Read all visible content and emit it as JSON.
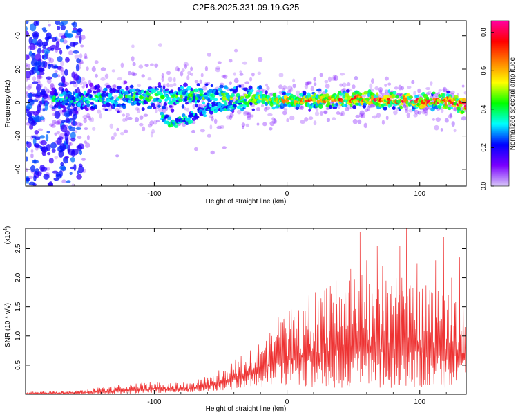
{
  "figure_title": "C2E6.2025.331.09.19.G25",
  "chart_data": [
    {
      "type": "heatmap",
      "title": "C2E6.2025.331.09.19.G25",
      "xlabel": "Height of straight line (km)",
      "ylabel": "Frequency (Hz)",
      "xlim": [
        -197,
        135
      ],
      "ylim": [
        -50,
        49
      ],
      "x_ticks": [
        -100,
        0,
        100
      ],
      "x_tick_labels": [
        "-100",
        "0",
        "100"
      ],
      "y_ticks": [
        -40,
        -20,
        0,
        20,
        40
      ],
      "y_tick_labels": [
        "-40",
        "-20",
        "0",
        "20",
        "40"
      ],
      "colorbar": {
        "label": "Normalized spectral amplitude",
        "range": [
          0,
          0.86
        ],
        "ticks": [
          0.0,
          0.2,
          0.4,
          0.6,
          0.8
        ],
        "tick_labels": [
          "0.0",
          "0.2",
          "0.4",
          "0.6",
          "0.8"
        ],
        "colormap": [
          "#d8c8f8",
          "#7a00ff",
          "#0000ff",
          "#00ffff",
          "#00ff00",
          "#ffff00",
          "#ff8000",
          "#ff0000",
          "#ff00a0"
        ]
      },
      "ridge": [
        {
          "x": -170,
          "freq": 2,
          "amp": 0.35
        },
        {
          "x": -140,
          "freq": 3,
          "amp": 0.38
        },
        {
          "x": -110,
          "freq": 3,
          "amp": 0.4
        },
        {
          "x": -80,
          "freq": 4,
          "amp": 0.42
        },
        {
          "x": -50,
          "freq": 3,
          "amp": 0.45
        },
        {
          "x": -20,
          "freq": 2,
          "amp": 0.5
        },
        {
          "x": 0,
          "freq": 1,
          "amp": 0.6
        },
        {
          "x": 30,
          "freq": 2,
          "amp": 0.65
        },
        {
          "x": 60,
          "freq": 2,
          "amp": 0.7
        },
        {
          "x": 90,
          "freq": 1,
          "amp": 0.72
        },
        {
          "x": 120,
          "freq": 1,
          "amp": 0.75
        },
        {
          "x": 132,
          "freq": -2,
          "amp": 0.8
        }
      ],
      "secondary_branch": [
        {
          "x": -95,
          "freq": -8,
          "amp": 0.3
        },
        {
          "x": -88,
          "freq": -13,
          "amp": 0.35
        },
        {
          "x": -80,
          "freq": -11,
          "amp": 0.3
        },
        {
          "x": -60,
          "freq": -4,
          "amp": 0.28
        },
        {
          "x": -40,
          "freq": -2,
          "amp": 0.3
        }
      ],
      "scatter_band": {
        "x_from": -197,
        "x_to": -155,
        "freq_from": -50,
        "freq_to": 49,
        "amp": 0.15
      }
    },
    {
      "type": "line",
      "xlabel": "Height of straight line (km)",
      "ylabel": "SNR (10 * v/v)",
      "y_multiplier": "(x10",
      "y_multiplier_exp": "4",
      "y_multiplier_close": ")",
      "xlim": [
        -197,
        135
      ],
      "ylim": [
        0,
        2.85
      ],
      "x_ticks": [
        -100,
        0,
        100
      ],
      "x_tick_labels": [
        "-100",
        "0",
        "100"
      ],
      "y_ticks": [
        0.5,
        1.0,
        1.5,
        2.0,
        2.5
      ],
      "y_tick_labels": [
        "0.5",
        "1.0",
        "1.5",
        "2.0",
        "2.5"
      ],
      "line_color": "#ee3333",
      "envelope": [
        {
          "x": -197,
          "low": 0.0,
          "high": 0.04
        },
        {
          "x": -160,
          "low": 0.0,
          "high": 0.06
        },
        {
          "x": -130,
          "low": 0.0,
          "high": 0.15
        },
        {
          "x": -100,
          "low": 0.02,
          "high": 0.22
        },
        {
          "x": -75,
          "low": 0.03,
          "high": 0.2
        },
        {
          "x": -55,
          "low": 0.05,
          "high": 0.35
        },
        {
          "x": -40,
          "low": 0.08,
          "high": 0.6
        },
        {
          "x": -25,
          "low": 0.1,
          "high": 0.85
        },
        {
          "x": -10,
          "low": 0.12,
          "high": 1.3
        },
        {
          "x": 5,
          "low": 0.1,
          "high": 1.55
        },
        {
          "x": 30,
          "low": 0.1,
          "high": 1.9
        },
        {
          "x": 50,
          "low": 0.1,
          "high": 2.1
        },
        {
          "x": 70,
          "low": 0.1,
          "high": 2.0
        },
        {
          "x": 90,
          "low": 0.1,
          "high": 2.0
        },
        {
          "x": 110,
          "low": 0.1,
          "high": 1.9
        },
        {
          "x": 135,
          "low": 0.1,
          "high": 1.6
        }
      ],
      "peaks": [
        {
          "x": 37,
          "y": 1.95
        },
        {
          "x": 48,
          "y": 2.15
        },
        {
          "x": 55,
          "y": 2.78
        },
        {
          "x": 60,
          "y": 2.3
        },
        {
          "x": 68,
          "y": 2.55
        },
        {
          "x": 72,
          "y": 2.2
        },
        {
          "x": 85,
          "y": 2.55
        },
        {
          "x": 90,
          "y": 2.86
        },
        {
          "x": 98,
          "y": 2.25
        },
        {
          "x": 112,
          "y": 2.3
        },
        {
          "x": 118,
          "y": 2.7
        },
        {
          "x": 124,
          "y": 2.0
        },
        {
          "x": 130,
          "y": 2.35
        }
      ]
    }
  ]
}
